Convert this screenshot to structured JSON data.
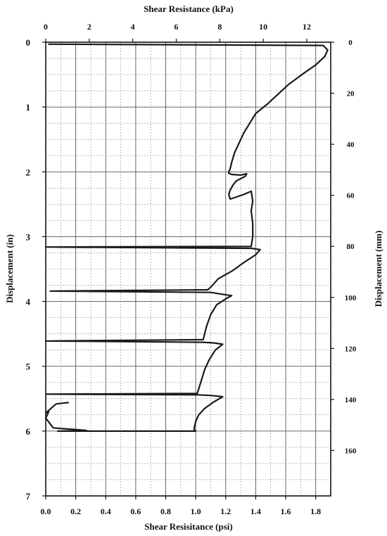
{
  "chart_data": {
    "type": "line",
    "xlabel_top": "Shear Resistance (kPa)",
    "xlabel_bottom": "Shear Resisitance (psi)",
    "ylabel_left": "Displacement (in)",
    "ylabel_right": "Displacement (mm)",
    "x_psi_range": [
      0,
      1.9
    ],
    "x_psi_ticks": [
      "0.0",
      "0.2",
      "0.4",
      "0.6",
      "0.8",
      "1.0",
      "1.2",
      "1.4",
      "1.6",
      "1.8"
    ],
    "x_psi_tick_values": [
      0,
      0.2,
      0.4,
      0.6,
      0.8,
      1.0,
      1.2,
      1.4,
      1.6,
      1.8
    ],
    "x_kpa_ticks": [
      "0",
      "2",
      "4",
      "6",
      "8",
      "10",
      "12"
    ],
    "x_kpa_tick_values": [
      0,
      2,
      4,
      6,
      8,
      10,
      12
    ],
    "y_in_range": [
      0,
      7
    ],
    "y_in_ticks": [
      "0",
      "1",
      "2",
      "3",
      "4",
      "5",
      "6",
      "7"
    ],
    "y_in_tick_values": [
      0,
      1,
      2,
      3,
      4,
      5,
      6,
      7
    ],
    "y_mm_ticks": [
      "0",
      "20",
      "40",
      "60",
      "80",
      "100",
      "120",
      "140",
      "160"
    ],
    "y_mm_tick_values": [
      0,
      20,
      40,
      60,
      80,
      100,
      120,
      140,
      160
    ],
    "grid": true,
    "line_color": "#1a1a1a",
    "series": [
      {
        "x": [
          0.02,
          1.85,
          1.88,
          1.86,
          1.8,
          1.72,
          1.62,
          1.55,
          1.48,
          1.4,
          1.36,
          1.32,
          1.29,
          1.26,
          1.24,
          1.23,
          1.22,
          1.22,
          1.24,
          1.3,
          1.34,
          1.33,
          1.27,
          1.25,
          1.23,
          1.22,
          1.23,
          1.32,
          1.37,
          1.38,
          1.37,
          1.38,
          1.38,
          1.37,
          0.0,
          1.37,
          1.43,
          1.4,
          1.32,
          1.25,
          1.15,
          1.1,
          1.08,
          0.03,
          1.1,
          1.18,
          1.24,
          1.2,
          1.14,
          1.1,
          1.07,
          1.05,
          0.0,
          1.05,
          1.12,
          1.18,
          1.13,
          1.09,
          1.06,
          1.04,
          1.02,
          1.01,
          0.0,
          1.01,
          1.1,
          1.18,
          1.12,
          1.06,
          1.02,
          1.0,
          0.99,
          0.99,
          1.0,
          0.08,
          0.27,
          0.05,
          0.0,
          0.02,
          0.0,
          0.07,
          0.15
        ],
        "y": [
          0.03,
          0.05,
          0.12,
          0.22,
          0.35,
          0.48,
          0.65,
          0.8,
          0.95,
          1.1,
          1.25,
          1.4,
          1.55,
          1.7,
          1.85,
          1.95,
          2.0,
          2.02,
          2.04,
          2.05,
          2.03,
          2.07,
          2.14,
          2.2,
          2.28,
          2.35,
          2.42,
          2.35,
          2.3,
          2.45,
          2.6,
          2.8,
          3.0,
          3.15,
          3.16,
          3.18,
          3.2,
          3.28,
          3.4,
          3.52,
          3.65,
          3.78,
          3.82,
          3.84,
          3.86,
          3.89,
          3.91,
          3.96,
          4.05,
          4.2,
          4.4,
          4.59,
          4.61,
          4.63,
          4.64,
          4.66,
          4.75,
          4.9,
          5.05,
          5.2,
          5.35,
          5.42,
          5.43,
          5.44,
          5.45,
          5.47,
          5.55,
          5.65,
          5.75,
          5.85,
          5.95,
          5.98,
          6.0,
          6.0,
          5.99,
          5.95,
          5.8,
          5.7,
          5.72,
          5.58,
          5.56
        ]
      }
    ]
  }
}
